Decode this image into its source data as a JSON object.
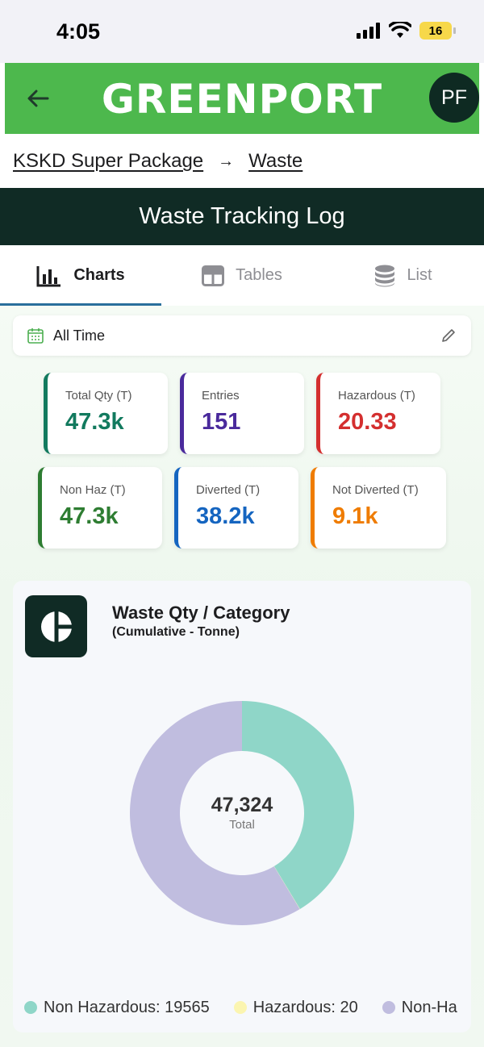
{
  "status_bar": {
    "time": "4:05",
    "battery": "16"
  },
  "header": {
    "brand": "GREENPORT",
    "avatar_initials": "PF"
  },
  "breadcrumb": {
    "items": [
      "KSKD Super Package",
      "Waste"
    ]
  },
  "page": {
    "title": "Waste Tracking Log"
  },
  "tabs": [
    {
      "label": "Charts",
      "icon": "bar-chart-icon",
      "active": true
    },
    {
      "label": "Tables",
      "icon": "table-icon",
      "active": false
    },
    {
      "label": "List",
      "icon": "database-icon",
      "active": false
    }
  ],
  "filter": {
    "label": "All Time"
  },
  "stats": [
    {
      "label": "Total Qty (T)",
      "value": "47.3k",
      "color": "#127a5e"
    },
    {
      "label": "Entries",
      "value": "151",
      "color": "#4a2a9c"
    },
    {
      "label": "Hazardous (T)",
      "value": "20.33",
      "color": "#d42f2f"
    },
    {
      "label": "Non Haz (T)",
      "value": "47.3k",
      "color": "#2e7d32"
    },
    {
      "label": "Diverted (T)",
      "value": "38.2k",
      "color": "#1565c0"
    },
    {
      "label": "Not Diverted (T)",
      "value": "9.1k",
      "color": "#ef7c00"
    }
  ],
  "chart_card": {
    "title": "Waste Qty / Category",
    "subtitle": "(Cumulative - Tonne)",
    "total_value": "47,324",
    "total_label": "Total"
  },
  "chart_data": {
    "type": "pie",
    "categories": [
      "Non Hazardous",
      "Hazardous",
      "Non-Ha"
    ],
    "values": [
      19565,
      20,
      27739
    ],
    "colors": [
      "#8fd6c8",
      "#fbf5b0",
      "#c0bddf"
    ],
    "legend_labels": [
      "Non Hazardous: 19565",
      "Hazardous: 20",
      "Non-Ha"
    ]
  }
}
